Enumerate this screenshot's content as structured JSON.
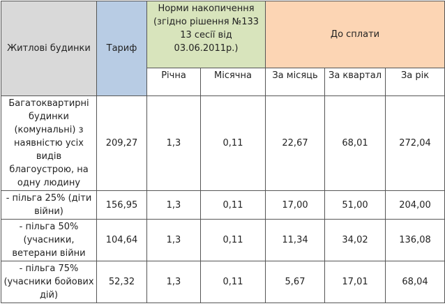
{
  "table": {
    "header": {
      "housing": "Житлові будинки",
      "tariff": "Тариф",
      "norms": "Норми накопичення (згідно рішення №133 13 сесії від 03.06.2011р.)",
      "payment": "До сплати",
      "sub": [
        "Річна",
        "Місячна",
        "За місяць",
        "За квартал",
        "За рік"
      ]
    },
    "rows": [
      [
        "Багатоквартирні будинки (комунальні) з наявністю усіх видів благоустрою, на одну людину",
        "209,27",
        "1,3",
        "0,11",
        "22,67",
        "68,01",
        "272,04"
      ],
      [
        "- пільга 25% (діти війни)",
        "156,95",
        "1,3",
        "0,11",
        "17,00",
        "51,00",
        "204,00"
      ],
      [
        "- пільга 50% (учасники, ветерани війни",
        "104,64",
        "1,3",
        "0,11",
        "11,34",
        "34,02",
        "136,08"
      ],
      [
        "- пільга 75% (учасники бойових дій)",
        "52,32",
        "1,3",
        "0,11",
        "5,67",
        "17,01",
        "68,04"
      ]
    ]
  }
}
